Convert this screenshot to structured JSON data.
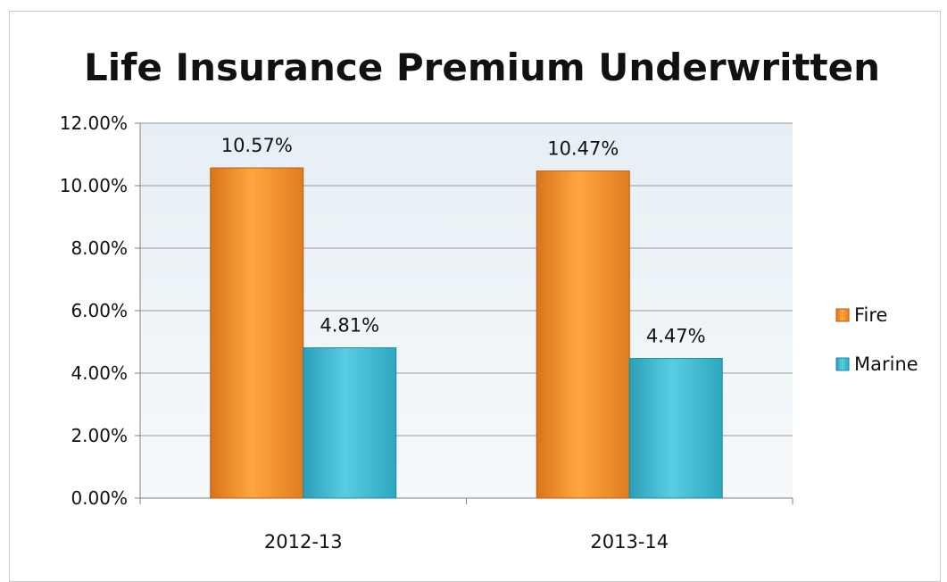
{
  "chart_data": {
    "type": "bar",
    "title": "Life Insurance Premium Underwritten",
    "categories": [
      "2012-13",
      "2013-14"
    ],
    "series": [
      {
        "name": "Fire",
        "values": [
          10.57,
          10.47
        ],
        "labels": [
          "10.57%",
          "10.47%"
        ],
        "color": "#f0922e"
      },
      {
        "name": "Marine",
        "values": [
          4.81,
          4.47
        ],
        "labels": [
          "4.81%",
          "4.47%"
        ],
        "color": "#3fb8cf"
      }
    ],
    "ylim": [
      0,
      12
    ],
    "yticks": [
      "0.00%",
      "2.00%",
      "4.00%",
      "6.00%",
      "8.00%",
      "10.00%",
      "12.00%"
    ],
    "grid": true,
    "legend": "right",
    "plot_background": "#eef4f8"
  }
}
